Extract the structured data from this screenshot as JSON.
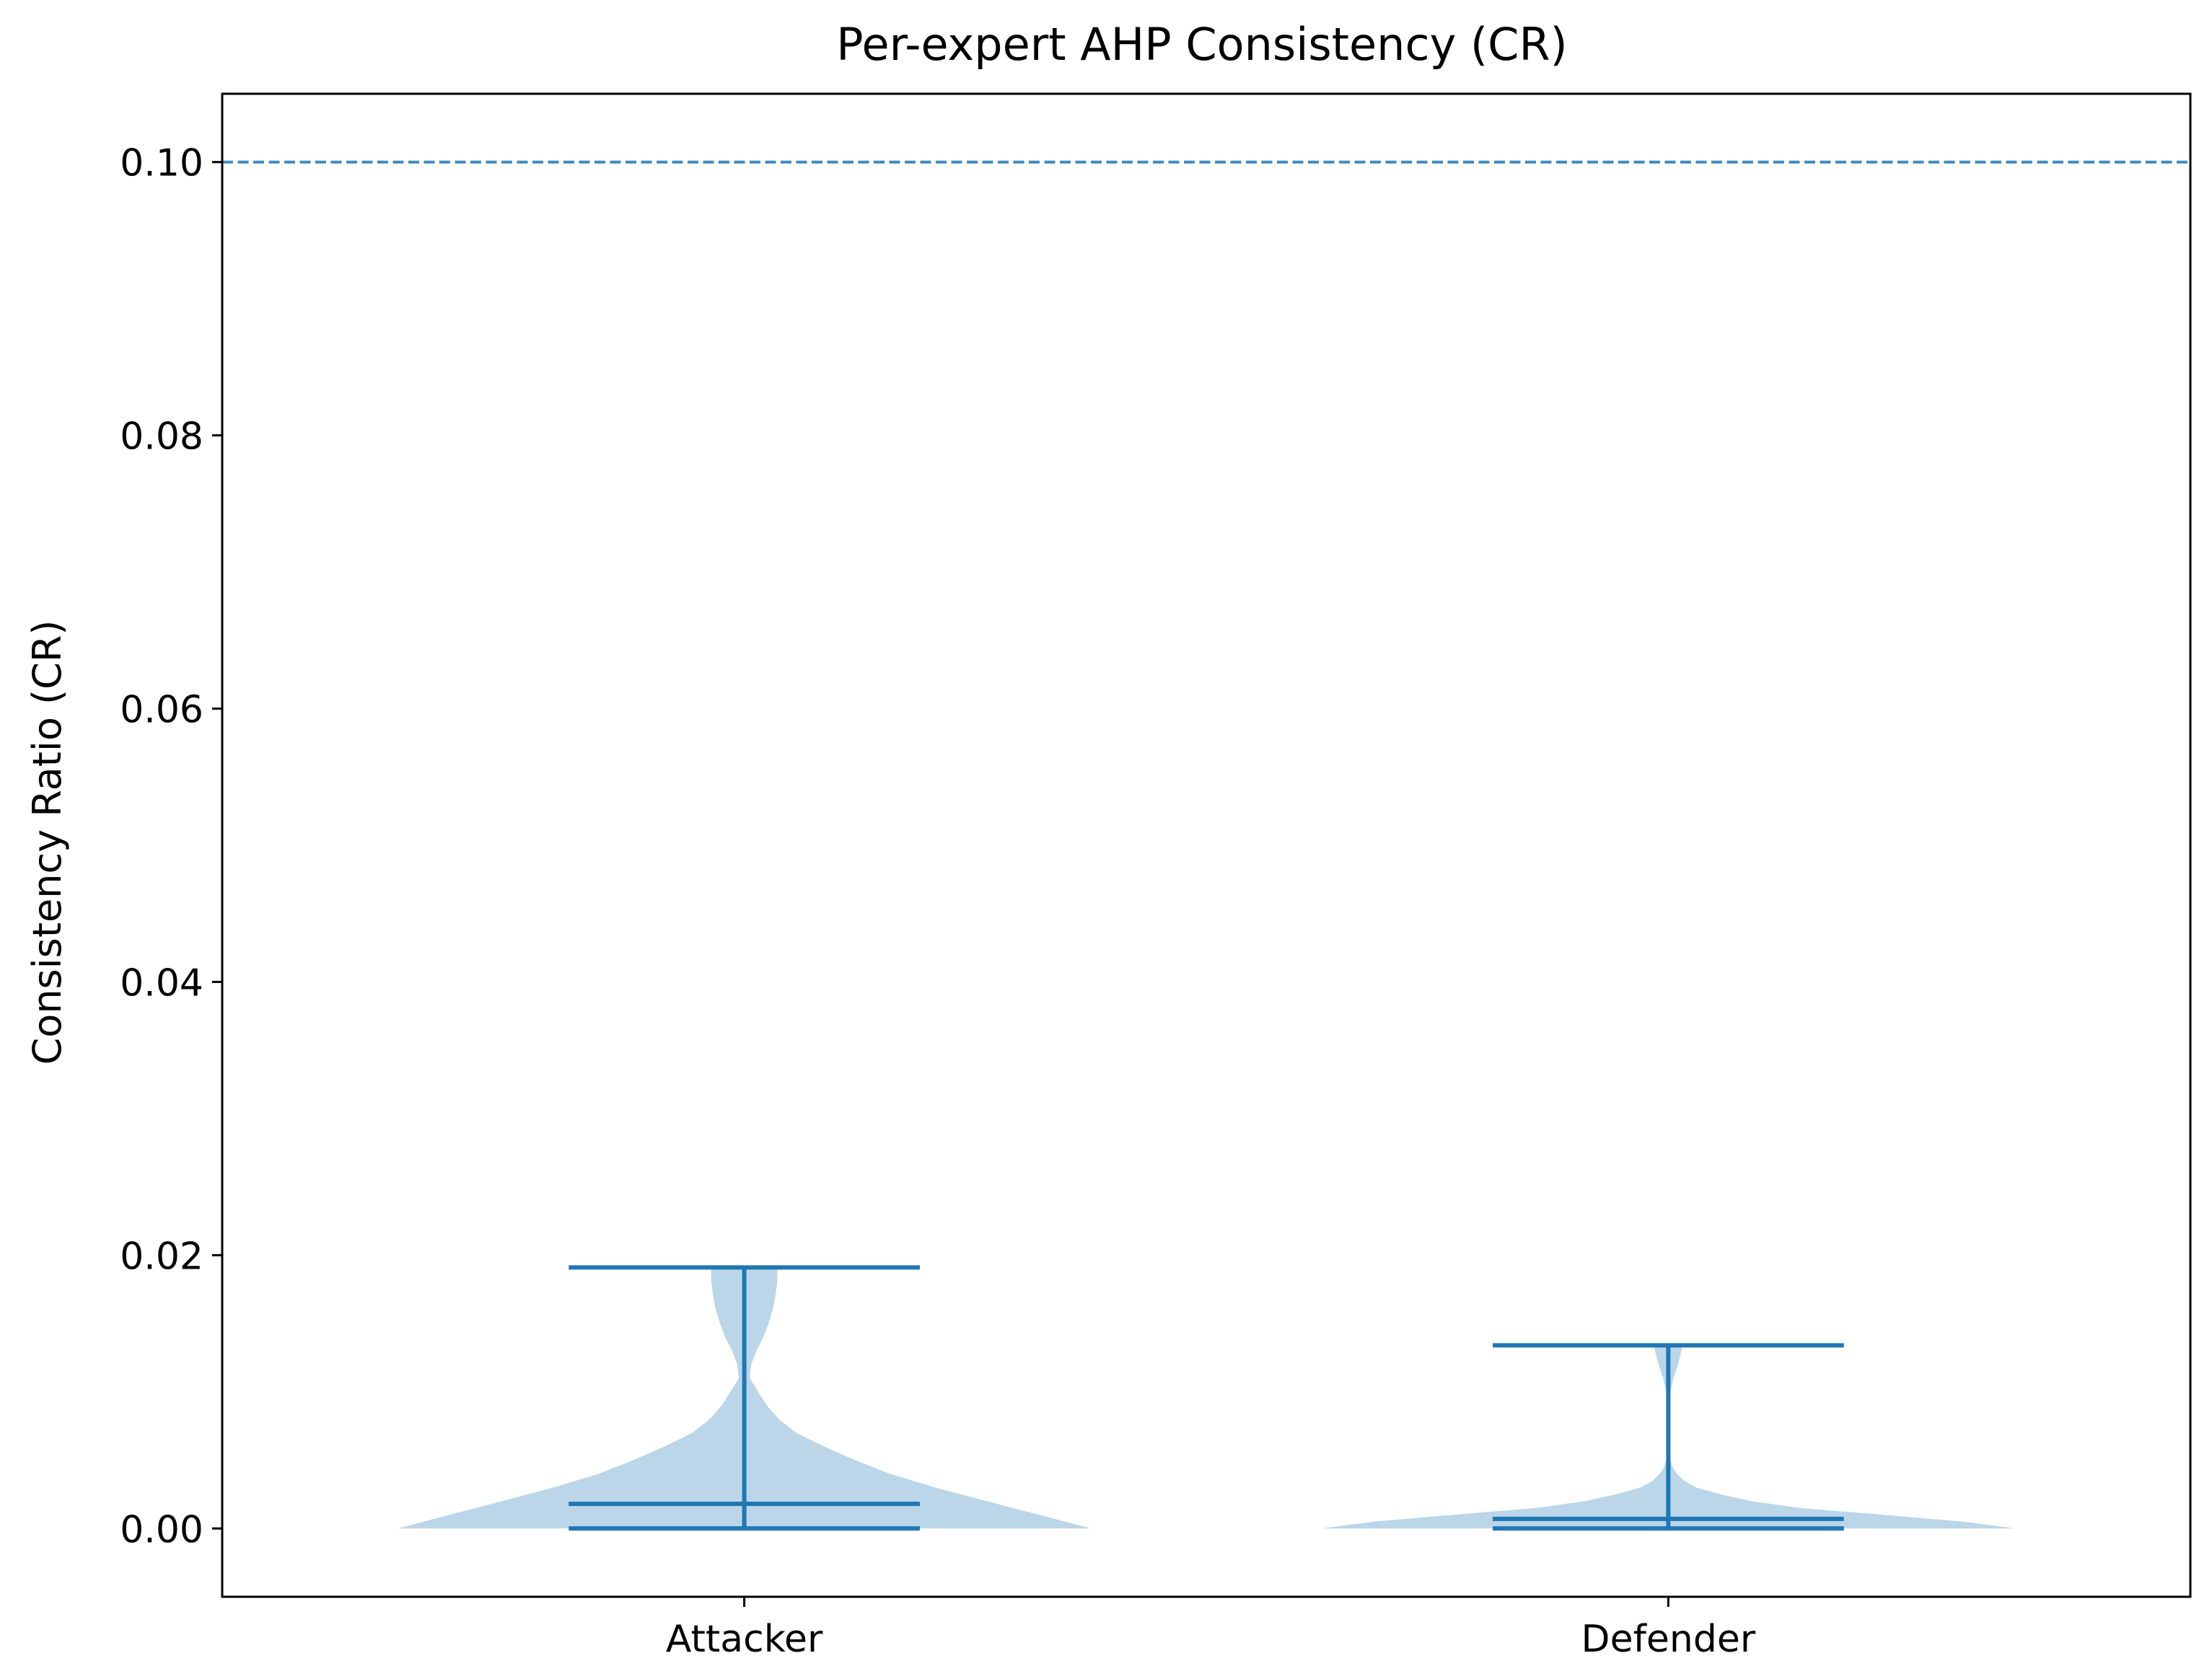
{
  "chart_data": {
    "type": "violin",
    "title": "Per-expert AHP Consistency (CR)",
    "xlabel": "",
    "ylabel": "Consistency Ratio (CR)",
    "ylim": [
      -0.005,
      0.105
    ],
    "yticks": [
      "0.00",
      "0.02",
      "0.04",
      "0.06",
      "0.08",
      "0.10"
    ],
    "categories": [
      "Attacker",
      "Defender"
    ],
    "violins": [
      {
        "category": "Attacker",
        "min": 0.0,
        "median": 0.0018,
        "max": 0.0191,
        "density": [
          [
            0.0,
            1.0
          ],
          [
            0.001,
            0.85
          ],
          [
            0.002,
            0.7
          ],
          [
            0.003,
            0.55
          ],
          [
            0.004,
            0.42
          ],
          [
            0.005,
            0.32
          ],
          [
            0.006,
            0.23
          ],
          [
            0.007,
            0.15
          ],
          [
            0.008,
            0.1
          ],
          [
            0.009,
            0.065
          ],
          [
            0.01,
            0.04
          ],
          [
            0.011,
            0.016
          ],
          [
            0.012,
            0.02
          ],
          [
            0.013,
            0.035
          ],
          [
            0.014,
            0.055
          ],
          [
            0.015,
            0.07
          ],
          [
            0.016,
            0.082
          ],
          [
            0.017,
            0.09
          ],
          [
            0.018,
            0.095
          ],
          [
            0.0191,
            0.096
          ]
        ]
      },
      {
        "category": "Defender",
        "min": 0.0,
        "median": 0.0007,
        "max": 0.0134,
        "density": [
          [
            0.0,
            1.0
          ],
          [
            0.0005,
            0.85
          ],
          [
            0.001,
            0.62
          ],
          [
            0.0015,
            0.38
          ],
          [
            0.002,
            0.24
          ],
          [
            0.0025,
            0.15
          ],
          [
            0.003,
            0.08
          ],
          [
            0.0035,
            0.045
          ],
          [
            0.004,
            0.025
          ],
          [
            0.0045,
            0.012
          ],
          [
            0.005,
            0.006
          ],
          [
            0.006,
            0.004
          ],
          [
            0.007,
            0.003
          ],
          [
            0.008,
            0.003
          ],
          [
            0.009,
            0.004
          ],
          [
            0.01,
            0.006
          ],
          [
            0.011,
            0.015
          ],
          [
            0.012,
            0.028
          ],
          [
            0.013,
            0.038
          ],
          [
            0.0134,
            0.04
          ]
        ]
      }
    ],
    "reference_line": {
      "y": 0.1,
      "style": "dashed"
    },
    "grid": false,
    "colors": {
      "violin_fill": "#1f77b4",
      "violin_alpha": 0.3,
      "stats_line": "#1f77b4",
      "reference_line": "#1f77b4"
    }
  }
}
